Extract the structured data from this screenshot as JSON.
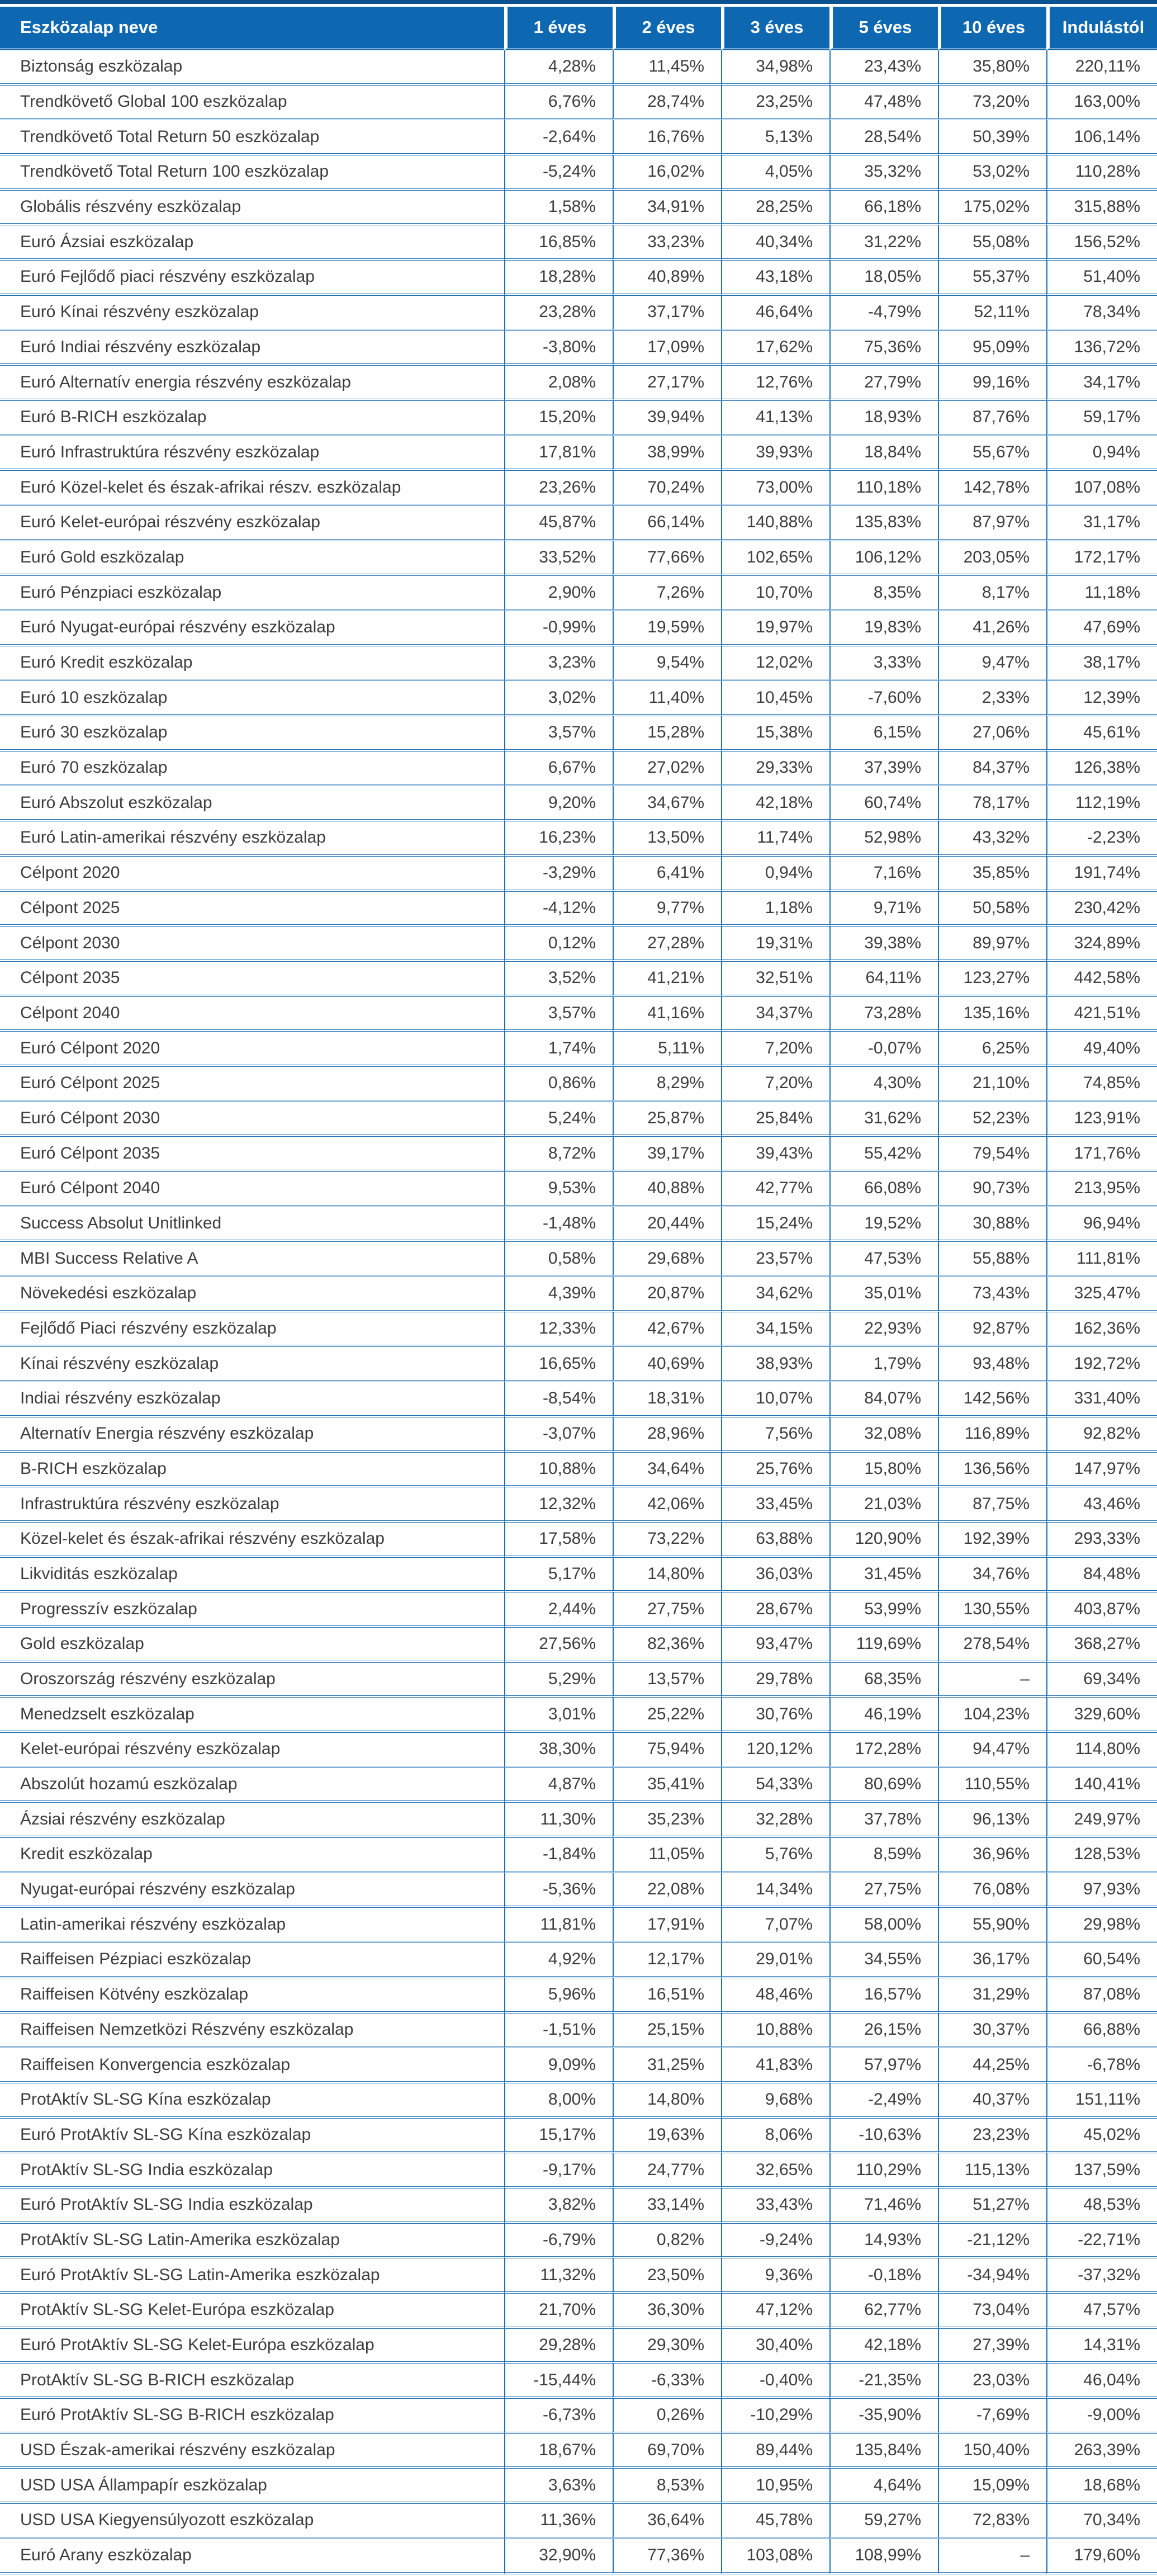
{
  "colors": {
    "header_background": "#0d68b1",
    "top_accent_bar": "#0a518f",
    "grid_border": "#1b6fb5",
    "header_text": "#ffffff",
    "body_text": "#3d3d3d"
  },
  "table": {
    "columns": [
      "Eszközalap neve",
      "1 éves",
      "2 éves",
      "3 éves",
      "5 éves",
      "10 éves",
      "Indulástól"
    ],
    "rows": [
      {
        "name": "Biztonság eszközalap",
        "values": [
          "4,28%",
          "11,45%",
          "34,98%",
          "23,43%",
          "35,80%",
          "220,11%"
        ]
      },
      {
        "name": "Trendkövető Global 100 eszközalap",
        "values": [
          "6,76%",
          "28,74%",
          "23,25%",
          "47,48%",
          "73,20%",
          "163,00%"
        ]
      },
      {
        "name": "Trendkövető Total Return 50 eszközalap",
        "values": [
          "-2,64%",
          "16,76%",
          "5,13%",
          "28,54%",
          "50,39%",
          "106,14%"
        ]
      },
      {
        "name": "Trendkövető Total Return 100 eszközalap",
        "values": [
          "-5,24%",
          "16,02%",
          "4,05%",
          "35,32%",
          "53,02%",
          "110,28%"
        ]
      },
      {
        "name": "Globális részvény eszközalap",
        "values": [
          "1,58%",
          "34,91%",
          "28,25%",
          "66,18%",
          "175,02%",
          "315,88%"
        ]
      },
      {
        "name": "Euró Ázsiai eszközalap",
        "values": [
          "16,85%",
          "33,23%",
          "40,34%",
          "31,22%",
          "55,08%",
          "156,52%"
        ]
      },
      {
        "name": "Euró Fejlődő piaci részvény eszközalap",
        "values": [
          "18,28%",
          "40,89%",
          "43,18%",
          "18,05%",
          "55,37%",
          "51,40%"
        ]
      },
      {
        "name": "Euró Kínai részvény eszközalap",
        "values": [
          "23,28%",
          "37,17%",
          "46,64%",
          "-4,79%",
          "52,11%",
          "78,34%"
        ]
      },
      {
        "name": "Euró Indiai részvény eszközalap",
        "values": [
          "-3,80%",
          "17,09%",
          "17,62%",
          "75,36%",
          "95,09%",
          "136,72%"
        ]
      },
      {
        "name": "Euró Alternatív energia részvény eszközalap",
        "values": [
          "2,08%",
          "27,17%",
          "12,76%",
          "27,79%",
          "99,16%",
          "34,17%"
        ]
      },
      {
        "name": "Euró B-RICH eszközalap",
        "values": [
          "15,20%",
          "39,94%",
          "41,13%",
          "18,93%",
          "87,76%",
          "59,17%"
        ]
      },
      {
        "name": "Euró Infrastruktúra részvény eszközalap",
        "values": [
          "17,81%",
          "38,99%",
          "39,93%",
          "18,84%",
          "55,67%",
          "0,94%"
        ]
      },
      {
        "name": "Euró Közel-kelet és észak-afrikai részv. eszközalap",
        "values": [
          "23,26%",
          "70,24%",
          "73,00%",
          "110,18%",
          "142,78%",
          "107,08%"
        ]
      },
      {
        "name": "Euró Kelet-európai részvény eszközalap",
        "values": [
          "45,87%",
          "66,14%",
          "140,88%",
          "135,83%",
          "87,97%",
          "31,17%"
        ]
      },
      {
        "name": "Euró Gold eszközalap",
        "values": [
          "33,52%",
          "77,66%",
          "102,65%",
          "106,12%",
          "203,05%",
          "172,17%"
        ]
      },
      {
        "name": "Euró Pénzpiaci eszközalap",
        "values": [
          "2,90%",
          "7,26%",
          "10,70%",
          "8,35%",
          "8,17%",
          "11,18%"
        ]
      },
      {
        "name": "Euró Nyugat-európai részvény eszközalap",
        "values": [
          "-0,99%",
          "19,59%",
          "19,97%",
          "19,83%",
          "41,26%",
          "47,69%"
        ]
      },
      {
        "name": "Euró Kredit eszközalap",
        "values": [
          "3,23%",
          "9,54%",
          "12,02%",
          "3,33%",
          "9,47%",
          "38,17%"
        ]
      },
      {
        "name": "Euró 10 eszközalap",
        "values": [
          "3,02%",
          "11,40%",
          "10,45%",
          "-7,60%",
          "2,33%",
          "12,39%"
        ]
      },
      {
        "name": "Euró 30 eszközalap",
        "values": [
          "3,57%",
          "15,28%",
          "15,38%",
          "6,15%",
          "27,06%",
          "45,61%"
        ]
      },
      {
        "name": "Euró 70 eszközalap",
        "values": [
          "6,67%",
          "27,02%",
          "29,33%",
          "37,39%",
          "84,37%",
          "126,38%"
        ]
      },
      {
        "name": "Euró Abszolut eszközalap",
        "values": [
          "9,20%",
          "34,67%",
          "42,18%",
          "60,74%",
          "78,17%",
          "112,19%"
        ]
      },
      {
        "name": "Euró Latin-amerikai részvény eszközalap",
        "values": [
          "16,23%",
          "13,50%",
          "11,74%",
          "52,98%",
          "43,32%",
          "-2,23%"
        ]
      },
      {
        "name": "Célpont 2020",
        "values": [
          "-3,29%",
          "6,41%",
          "0,94%",
          "7,16%",
          "35,85%",
          "191,74%"
        ]
      },
      {
        "name": "Célpont 2025",
        "values": [
          "-4,12%",
          "9,77%",
          "1,18%",
          "9,71%",
          "50,58%",
          "230,42%"
        ]
      },
      {
        "name": "Célpont 2030",
        "values": [
          "0,12%",
          "27,28%",
          "19,31%",
          "39,38%",
          "89,97%",
          "324,89%"
        ]
      },
      {
        "name": "Célpont 2035",
        "values": [
          "3,52%",
          "41,21%",
          "32,51%",
          "64,11%",
          "123,27%",
          "442,58%"
        ]
      },
      {
        "name": "Célpont 2040",
        "values": [
          "3,57%",
          "41,16%",
          "34,37%",
          "73,28%",
          "135,16%",
          "421,51%"
        ]
      },
      {
        "name": "Euró Célpont 2020",
        "values": [
          "1,74%",
          "5,11%",
          "7,20%",
          "-0,07%",
          "6,25%",
          "49,40%"
        ]
      },
      {
        "name": "Euró Célpont 2025",
        "values": [
          "0,86%",
          "8,29%",
          "7,20%",
          "4,30%",
          "21,10%",
          "74,85%"
        ]
      },
      {
        "name": "Euró Célpont 2030",
        "values": [
          "5,24%",
          "25,87%",
          "25,84%",
          "31,62%",
          "52,23%",
          "123,91%"
        ]
      },
      {
        "name": "Euró Célpont 2035",
        "values": [
          "8,72%",
          "39,17%",
          "39,43%",
          "55,42%",
          "79,54%",
          "171,76%"
        ]
      },
      {
        "name": "Euró Célpont 2040",
        "values": [
          "9,53%",
          "40,88%",
          "42,77%",
          "66,08%",
          "90,73%",
          "213,95%"
        ]
      },
      {
        "name": "Success Absolut Unitlinked",
        "values": [
          "-1,48%",
          "20,44%",
          "15,24%",
          "19,52%",
          "30,88%",
          "96,94%"
        ]
      },
      {
        "name": "MBI Success Relative A",
        "values": [
          "0,58%",
          "29,68%",
          "23,57%",
          "47,53%",
          "55,88%",
          "111,81%"
        ]
      },
      {
        "name": "Növekedési eszközalap",
        "values": [
          "4,39%",
          "20,87%",
          "34,62%",
          "35,01%",
          "73,43%",
          "325,47%"
        ]
      },
      {
        "name": "Fejlődő Piaci részvény eszközalap",
        "values": [
          "12,33%",
          "42,67%",
          "34,15%",
          "22,93%",
          "92,87%",
          "162,36%"
        ]
      },
      {
        "name": "Kínai részvény eszközalap",
        "values": [
          "16,65%",
          "40,69%",
          "38,93%",
          "1,79%",
          "93,48%",
          "192,72%"
        ]
      },
      {
        "name": "Indiai részvény eszközalap",
        "values": [
          "-8,54%",
          "18,31%",
          "10,07%",
          "84,07%",
          "142,56%",
          "331,40%"
        ]
      },
      {
        "name": "Alternatív Energia részvény eszközalap",
        "values": [
          "-3,07%",
          "28,96%",
          "7,56%",
          "32,08%",
          "116,89%",
          "92,82%"
        ]
      },
      {
        "name": "B-RICH eszközalap",
        "values": [
          "10,88%",
          "34,64%",
          "25,76%",
          "15,80%",
          "136,56%",
          "147,97%"
        ]
      },
      {
        "name": "Infrastruktúra részvény eszközalap",
        "values": [
          "12,32%",
          "42,06%",
          "33,45%",
          "21,03%",
          "87,75%",
          "43,46%"
        ]
      },
      {
        "name": "Közel-kelet és észak-afrikai részvény eszközalap",
        "values": [
          "17,58%",
          "73,22%",
          "63,88%",
          "120,90%",
          "192,39%",
          "293,33%"
        ]
      },
      {
        "name": "Likviditás eszközalap",
        "values": [
          "5,17%",
          "14,80%",
          "36,03%",
          "31,45%",
          "34,76%",
          "84,48%"
        ]
      },
      {
        "name": "Progresszív eszközalap",
        "values": [
          "2,44%",
          "27,75%",
          "28,67%",
          "53,99%",
          "130,55%",
          "403,87%"
        ]
      },
      {
        "name": "Gold eszközalap",
        "values": [
          "27,56%",
          "82,36%",
          "93,47%",
          "119,69%",
          "278,54%",
          "368,27%"
        ]
      },
      {
        "name": "Oroszország részvény eszközalap",
        "values": [
          "5,29%",
          "13,57%",
          "29,78%",
          "68,35%",
          "–",
          "69,34%"
        ]
      },
      {
        "name": "Menedzselt eszközalap",
        "values": [
          "3,01%",
          "25,22%",
          "30,76%",
          "46,19%",
          "104,23%",
          "329,60%"
        ]
      },
      {
        "name": "Kelet-európai részvény eszközalap",
        "values": [
          "38,30%",
          "75,94%",
          "120,12%",
          "172,28%",
          "94,47%",
          "114,80%"
        ]
      },
      {
        "name": "Abszolút hozamú eszközalap",
        "values": [
          "4,87%",
          "35,41%",
          "54,33%",
          "80,69%",
          "110,55%",
          "140,41%"
        ]
      },
      {
        "name": "Ázsiai részvény eszközalap",
        "values": [
          "11,30%",
          "35,23%",
          "32,28%",
          "37,78%",
          "96,13%",
          "249,97%"
        ]
      },
      {
        "name": "Kredit eszközalap",
        "values": [
          "-1,84%",
          "11,05%",
          "5,76%",
          "8,59%",
          "36,96%",
          "128,53%"
        ]
      },
      {
        "name": "Nyugat-európai részvény eszközalap",
        "values": [
          "-5,36%",
          "22,08%",
          "14,34%",
          "27,75%",
          "76,08%",
          "97,93%"
        ]
      },
      {
        "name": "Latin-amerikai részvény eszközalap",
        "values": [
          "11,81%",
          "17,91%",
          "7,07%",
          "58,00%",
          "55,90%",
          "29,98%"
        ]
      },
      {
        "name": "Raiffeisen Pézpiaci eszközalap",
        "values": [
          "4,92%",
          "12,17%",
          "29,01%",
          "34,55%",
          "36,17%",
          "60,54%"
        ]
      },
      {
        "name": "Raiffeisen Kötvény eszközalap",
        "values": [
          "5,96%",
          "16,51%",
          "48,46%",
          "16,57%",
          "31,29%",
          "87,08%"
        ]
      },
      {
        "name": "Raiffeisen Nemzetközi Részvény eszközalap",
        "values": [
          "-1,51%",
          "25,15%",
          "10,88%",
          "26,15%",
          "30,37%",
          "66,88%"
        ]
      },
      {
        "name": "Raiffeisen Konvergencia eszközalap",
        "values": [
          "9,09%",
          "31,25%",
          "41,83%",
          "57,97%",
          "44,25%",
          "-6,78%"
        ]
      },
      {
        "name": "ProtAktív SL-SG Kína eszközalap",
        "values": [
          "8,00%",
          "14,80%",
          "9,68%",
          "-2,49%",
          "40,37%",
          "151,11%"
        ]
      },
      {
        "name": "Euró ProtAktív SL-SG Kína eszközalap",
        "values": [
          "15,17%",
          "19,63%",
          "8,06%",
          "-10,63%",
          "23,23%",
          "45,02%"
        ]
      },
      {
        "name": "ProtAktív SL-SG India eszközalap",
        "values": [
          "-9,17%",
          "24,77%",
          "32,65%",
          "110,29%",
          "115,13%",
          "137,59%"
        ]
      },
      {
        "name": "Euró ProtAktív SL-SG India eszközalap",
        "values": [
          "3,82%",
          "33,14%",
          "33,43%",
          "71,46%",
          "51,27%",
          "48,53%"
        ]
      },
      {
        "name": "ProtAktív SL-SG Latin-Amerika eszközalap",
        "values": [
          "-6,79%",
          "0,82%",
          "-9,24%",
          "14,93%",
          "-21,12%",
          "-22,71%"
        ]
      },
      {
        "name": "Euró ProtAktív SL-SG Latin-Amerika eszközalap",
        "values": [
          "11,32%",
          "23,50%",
          "9,36%",
          "-0,18%",
          "-34,94%",
          "-37,32%"
        ]
      },
      {
        "name": "ProtAktív SL-SG Kelet-Európa eszközalap",
        "values": [
          "21,70%",
          "36,30%",
          "47,12%",
          "62,77%",
          "73,04%",
          "47,57%"
        ]
      },
      {
        "name": "Euró ProtAktív SL-SG Kelet-Európa eszközalap",
        "values": [
          "29,28%",
          "29,30%",
          "30,40%",
          "42,18%",
          "27,39%",
          "14,31%"
        ]
      },
      {
        "name": "ProtAktív SL-SG B-RICH eszközalap",
        "values": [
          "-15,44%",
          "-6,33%",
          "-0,40%",
          "-21,35%",
          "23,03%",
          "46,04%"
        ]
      },
      {
        "name": "Euró ProtAktív SL-SG B-RICH eszközalap",
        "values": [
          "-6,73%",
          "0,26%",
          "-10,29%",
          "-35,90%",
          "-7,69%",
          "-9,00%"
        ]
      },
      {
        "name": "USD Észak-amerikai részvény eszközalap",
        "values": [
          "18,67%",
          "69,70%",
          "89,44%",
          "135,84%",
          "150,40%",
          "263,39%"
        ]
      },
      {
        "name": "USD USA Állampapír eszközalap",
        "values": [
          "3,63%",
          "8,53%",
          "10,95%",
          "4,64%",
          "15,09%",
          "18,68%"
        ]
      },
      {
        "name": "USD USA Kiegyensúlyozott eszközalap",
        "values": [
          "11,36%",
          "36,64%",
          "45,78%",
          "59,27%",
          "72,83%",
          "70,34%"
        ]
      },
      {
        "name": "Euró Arany eszközalap",
        "values": [
          "32,90%",
          "77,36%",
          "103,08%",
          "108,99%",
          "–",
          "179,60%"
        ]
      }
    ]
  }
}
